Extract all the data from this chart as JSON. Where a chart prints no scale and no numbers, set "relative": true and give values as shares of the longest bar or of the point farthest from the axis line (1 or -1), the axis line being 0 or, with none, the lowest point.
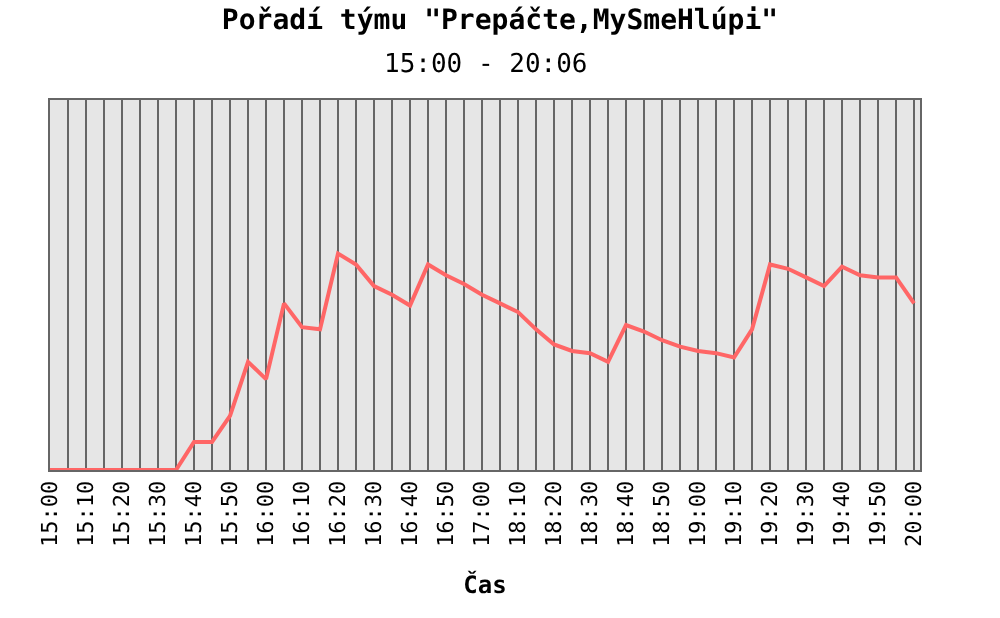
{
  "chart_data": {
    "type": "line",
    "title": "Pořadí týmu \"Prepáčte,MySmeHlúpi\"",
    "subtitle": "15:00 - 20:06",
    "xlabel": "Čas",
    "relative": true,
    "grid": "x",
    "legend": false,
    "categories": [
      "15:00",
      null,
      "15:10",
      null,
      "15:20",
      null,
      "15:30",
      null,
      "15:40",
      null,
      "15:50",
      null,
      "16:00",
      null,
      "16:10",
      null,
      "16:20",
      null,
      "16:30",
      null,
      "16:40",
      null,
      "16:50",
      null,
      "17:00",
      null,
      "18:10",
      null,
      "18:20",
      null,
      "18:30",
      null,
      "18:40",
      null,
      "18:50",
      null,
      "19:00",
      null,
      "19:10",
      null,
      "19:20",
      null,
      "19:30",
      null,
      "19:40",
      null,
      "19:50",
      null,
      "20:00"
    ],
    "series": [
      {
        "color": "#ff6666",
        "values": [
          0,
          0,
          0,
          0,
          0,
          0,
          0,
          0,
          0.13,
          0.13,
          0.25,
          0.5,
          0.42,
          0.77,
          0.66,
          0.65,
          1,
          0.95,
          0.85,
          0.81,
          0.76,
          0.95,
          0.9,
          0.86,
          0.81,
          0.77,
          0.73,
          0.65,
          0.58,
          0.55,
          0.54,
          0.5,
          0.67,
          0.64,
          0.6,
          0.57,
          0.55,
          0.54,
          0.52,
          0.65,
          0.95,
          0.93,
          0.89,
          0.85,
          0.94,
          0.9,
          0.89,
          0.89,
          0.77
        ]
      }
    ]
  }
}
